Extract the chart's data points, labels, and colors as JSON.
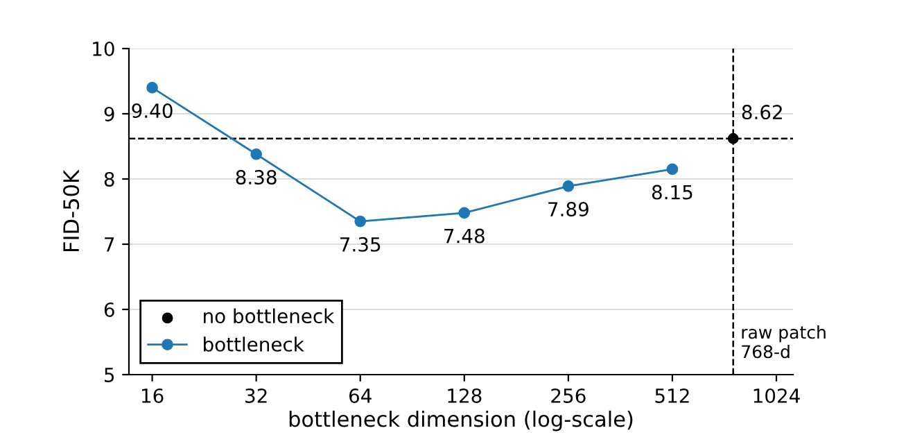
{
  "chart_data": {
    "type": "line",
    "xlabel": "bottleneck dimension (log-scale)",
    "ylabel": "FID-50K",
    "log": "x",
    "xlim": [
      13.7,
      1144
    ],
    "xticks": [
      16,
      32,
      64,
      128,
      256,
      512,
      1024
    ],
    "ylim": [
      5,
      10
    ],
    "yticks": [
      5,
      6,
      7,
      8,
      9,
      10
    ],
    "series": [
      {
        "name": "no bottleneck",
        "type": "scatter",
        "color": "#000000",
        "x": [
          768
        ],
        "values": [
          8.62
        ],
        "value_labels": [
          "8.62"
        ]
      },
      {
        "name": "bottleneck",
        "color": "#1f77b4",
        "x": [
          16,
          32,
          64,
          128,
          256,
          512
        ],
        "values": [
          9.4,
          8.38,
          7.35,
          7.48,
          7.89,
          8.15
        ],
        "value_labels": [
          "9.40",
          "8.38",
          "7.35",
          "7.48",
          "7.89",
          "8.15"
        ]
      }
    ],
    "ref_lines": [
      {
        "axis": "y",
        "value": 8.62,
        "color": "#000000",
        "line_style": "dashed"
      },
      {
        "axis": "x",
        "value": 768,
        "label": "raw patch\n768-d",
        "color": "#000000",
        "line_style": "dashed"
      }
    ],
    "grid": "y",
    "legend": "bottom left",
    "marker": "circle"
  }
}
